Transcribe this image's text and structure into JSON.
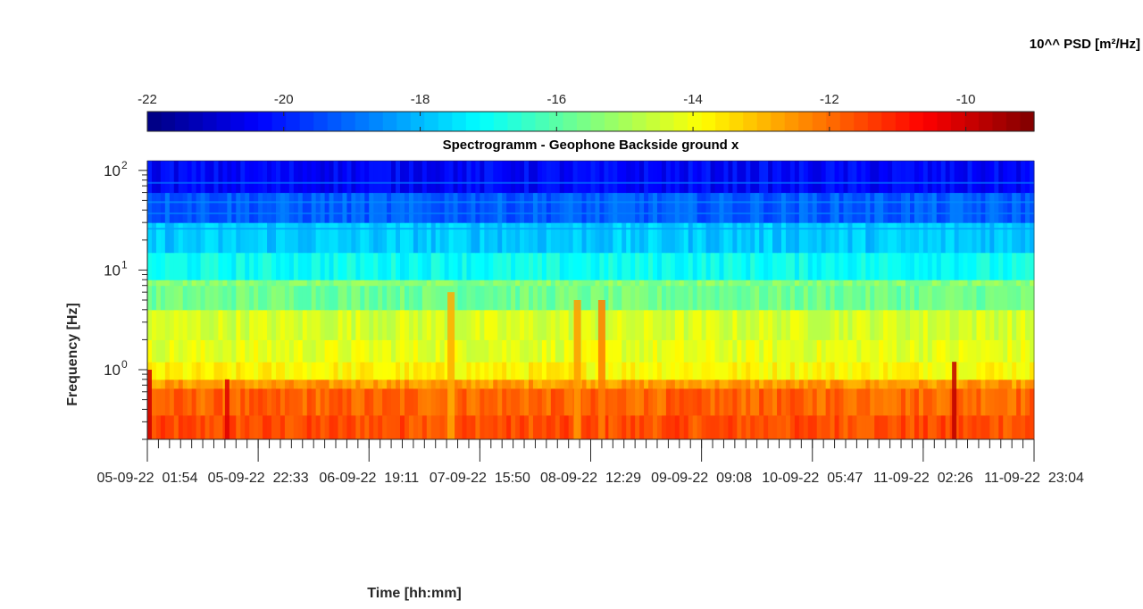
{
  "chart_data": {
    "type": "heatmap",
    "title": "Spectrogramm - Geophone Backside ground x",
    "xlabel": "Time [hh:mm]",
    "ylabel": "Frequency [Hz]",
    "y_scale": "log",
    "ylim": [
      0.2,
      125
    ],
    "y_ticks": [
      {
        "value": 1,
        "base": "10",
        "exp": "0"
      },
      {
        "value": 10,
        "base": "10",
        "exp": "1"
      },
      {
        "value": 100,
        "base": "10",
        "exp": "2"
      }
    ],
    "x_tick_labels": [
      "05-09-22  01:54",
      "05-09-22  22:33",
      "06-09-22  19:11",
      "07-09-22  15:50",
      "08-09-22  12:29",
      "09-09-22  09:08",
      "10-09-22  05:47",
      "11-09-22  02:26",
      "11-09-22  23:04"
    ],
    "colorbar": {
      "title": "10^^ PSD [m²/Hz]",
      "range": [
        -22,
        -9
      ],
      "ticks": [
        -22,
        -20,
        -18,
        -16,
        -14,
        -12,
        -10
      ],
      "tick_labels": [
        "-22",
        "-20",
        "-18",
        "-16",
        "-14",
        "-12",
        "-10"
      ],
      "colormap": "jet",
      "location": "top"
    },
    "bands": [
      {
        "f_low": 0.2,
        "f_high": 0.35,
        "log_psd": -11.6
      },
      {
        "f_low": 0.35,
        "f_high": 0.65,
        "log_psd": -11.9
      },
      {
        "f_low": 0.65,
        "f_high": 0.8,
        "log_psd": -12.6
      },
      {
        "f_low": 0.8,
        "f_high": 1.2,
        "log_psd": -13.8
      },
      {
        "f_low": 1.2,
        "f_high": 2.0,
        "log_psd": -14.2
      },
      {
        "f_low": 2.0,
        "f_high": 4.0,
        "log_psd": -14.4
      },
      {
        "f_low": 4.0,
        "f_high": 7.0,
        "log_psd": -15.7
      },
      {
        "f_low": 7.0,
        "f_high": 8.0,
        "log_psd": -15.4
      },
      {
        "f_low": 8.0,
        "f_high": 15.0,
        "log_psd": -17.0
      },
      {
        "f_low": 15.0,
        "f_high": 30.0,
        "log_psd": -17.8
      },
      {
        "f_low": 30.0,
        "f_high": 60.0,
        "log_psd": -19.2
      },
      {
        "f_low": 60.0,
        "f_high": 125.0,
        "log_psd": -20.4
      }
    ],
    "events": [
      {
        "time_index": 0.02,
        "f_max": 1.0,
        "log_psd": -10.0
      },
      {
        "time_index": 0.72,
        "f_max": 0.8,
        "log_psd": -10.2
      },
      {
        "time_index": 7.28,
        "f_max": 1.2,
        "log_psd": -9.8
      },
      {
        "time_index": 2.74,
        "f_max": 6.0,
        "log_psd": -12.8
      },
      {
        "time_index": 3.88,
        "f_max": 5.0,
        "log_psd": -12.6
      },
      {
        "time_index": 4.1,
        "f_max": 5.0,
        "log_psd": -12.2
      }
    ],
    "grid": false
  }
}
